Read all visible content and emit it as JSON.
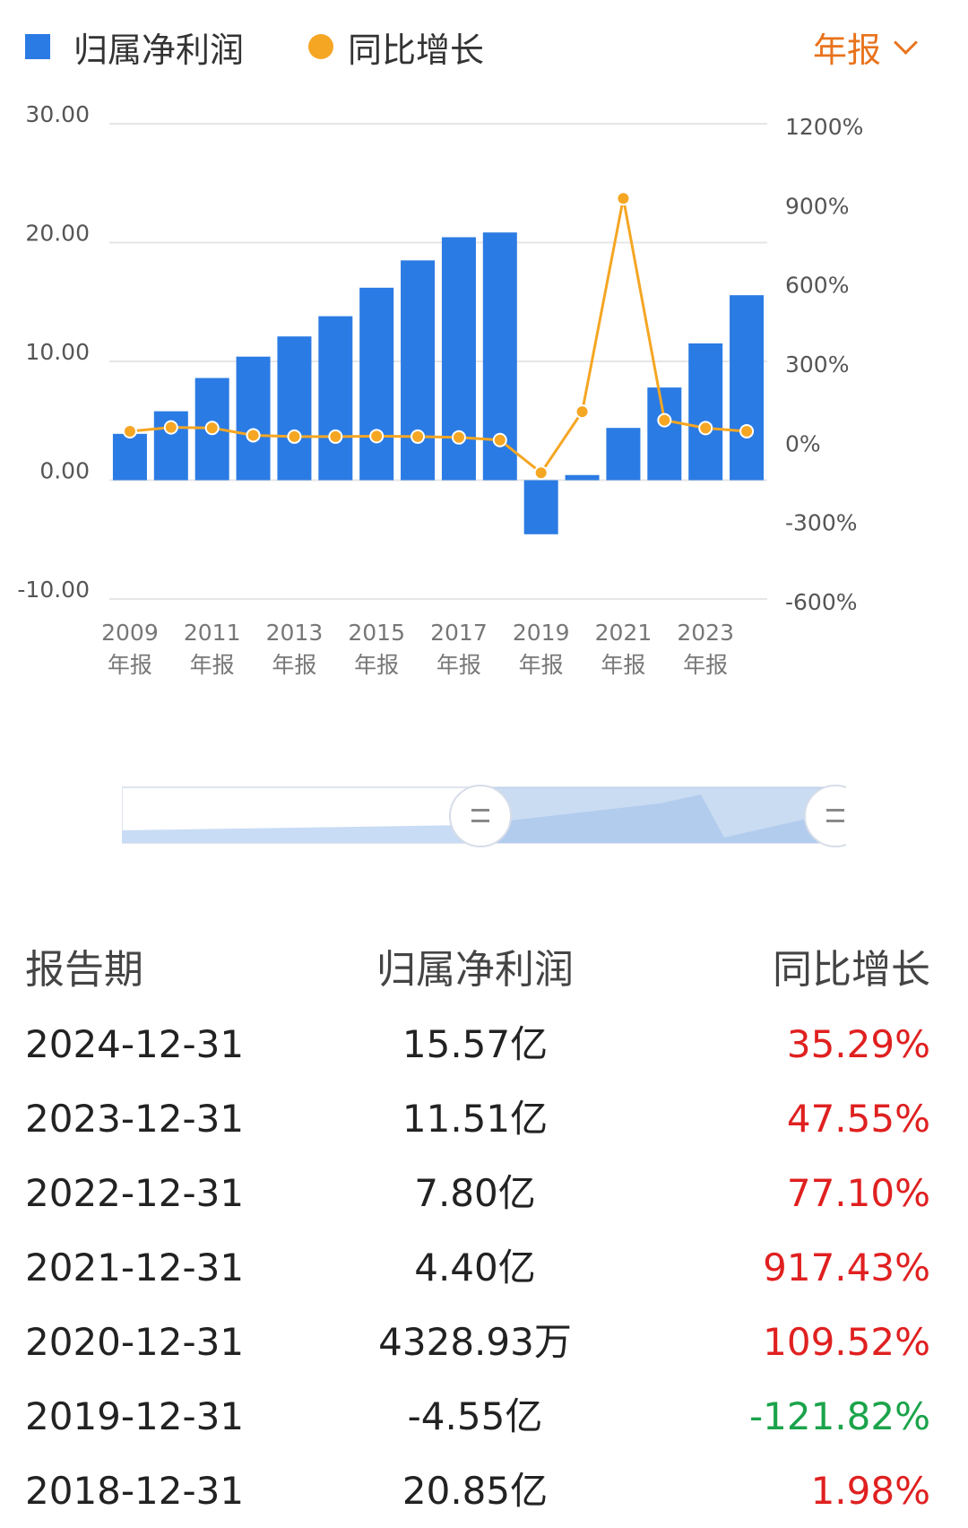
{
  "legend": {
    "bar_label": "归属净利润",
    "line_label": "同比增长",
    "period": "年报"
  },
  "colors": {
    "bar": "#2b7be4",
    "line": "#f5a623",
    "period": "#e8731c",
    "positive": "#e02020",
    "negative": "#1aa34a"
  },
  "chart_data": {
    "type": "bar",
    "title": "",
    "categories": [
      "2009",
      "2010",
      "2011",
      "2012",
      "2013",
      "2014",
      "2015",
      "2016",
      "2017",
      "2018",
      "2019",
      "2020",
      "2021",
      "2022",
      "2023",
      "2024"
    ],
    "x_tick_labels": [
      {
        "year": "2009",
        "suffix": "年报"
      },
      {
        "year": "2011",
        "suffix": "年报"
      },
      {
        "year": "2013",
        "suffix": "年报"
      },
      {
        "year": "2015",
        "suffix": "年报"
      },
      {
        "year": "2017",
        "suffix": "年报"
      },
      {
        "year": "2019",
        "suffix": "年报"
      },
      {
        "year": "2021",
        "suffix": "年报"
      },
      {
        "year": "2023",
        "suffix": "年报"
      }
    ],
    "series": [
      {
        "name": "归属净利润",
        "type": "bar",
        "axis": "left",
        "values": [
          3.9,
          5.8,
          8.6,
          10.4,
          12.1,
          13.8,
          16.2,
          18.5,
          20.45,
          20.85,
          -4.55,
          0.4329,
          4.4,
          7.8,
          11.51,
          15.57
        ]
      },
      {
        "name": "同比增长",
        "type": "line",
        "axis": "right",
        "values": [
          35,
          50,
          48,
          20,
          15,
          15,
          17,
          15,
          12,
          1.98,
          -121.82,
          109.52,
          917.43,
          77.1,
          47.55,
          35.29
        ]
      }
    ],
    "y_left": {
      "range": [
        -10,
        30
      ],
      "ticks": [
        "30.00",
        "20.00",
        "10.00",
        "0.00",
        "-10.00"
      ],
      "values": [
        30,
        20,
        10,
        0,
        -10
      ]
    },
    "y_right": {
      "range": [
        -600,
        1200
      ],
      "ticks": [
        "1200%",
        "900%",
        "600%",
        "300%",
        "0%",
        "-300%",
        "-600%"
      ],
      "values": [
        1200,
        900,
        600,
        300,
        0,
        -300,
        -600
      ]
    },
    "grid": true,
    "legend_position": "top-left"
  },
  "table": {
    "headers": [
      "报告期",
      "归属净利润",
      "同比增长"
    ],
    "rows": [
      {
        "date": "2024-12-31",
        "profit": "15.57亿",
        "growth": "35.29%",
        "sign": "pos"
      },
      {
        "date": "2023-12-31",
        "profit": "11.51亿",
        "growth": "47.55%",
        "sign": "pos"
      },
      {
        "date": "2022-12-31",
        "profit": "7.80亿",
        "growth": "77.10%",
        "sign": "pos"
      },
      {
        "date": "2021-12-31",
        "profit": "4.40亿",
        "growth": "917.43%",
        "sign": "pos"
      },
      {
        "date": "2020-12-31",
        "profit": "4328.93万",
        "growth": "109.52%",
        "sign": "pos"
      },
      {
        "date": "2019-12-31",
        "profit": "-4.55亿",
        "growth": "-121.82%",
        "sign": "neg"
      },
      {
        "date": "2018-12-31",
        "profit": "20.85亿",
        "growth": "1.98%",
        "sign": "pos"
      }
    ]
  }
}
